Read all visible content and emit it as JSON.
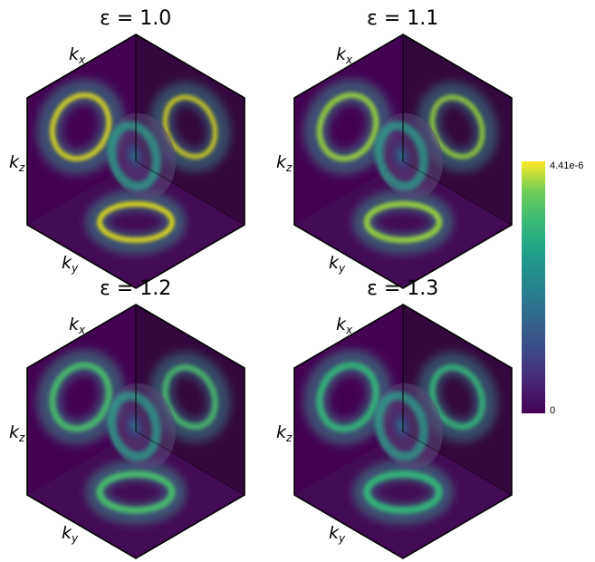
{
  "panels": [
    {
      "eps_symbol": "ε",
      "eps_value": "= 1.0",
      "ring_intensity": 1.0,
      "ring_sharpness": 1.0
    },
    {
      "eps_symbol": "ε",
      "eps_value": "= 1.1",
      "ring_intensity": 0.78,
      "ring_sharpness": 0.85
    },
    {
      "eps_symbol": "ε",
      "eps_value": "= 1.2",
      "ring_intensity": 0.62,
      "ring_sharpness": 0.6
    },
    {
      "eps_symbol": "ε",
      "eps_value": "= 1.3",
      "ring_intensity": 0.58,
      "ring_sharpness": 0.5
    }
  ],
  "axes": {
    "k": "k",
    "x": "x",
    "y": "y",
    "z": "z"
  },
  "colorbar": {
    "max_label": "4.41e-6",
    "min_label": "0",
    "colormap": "viridis"
  },
  "colors": {
    "background_face": "#440154",
    "back_face": "#3b0a4e",
    "right_face": "#33083f",
    "edge": "#000000"
  }
}
